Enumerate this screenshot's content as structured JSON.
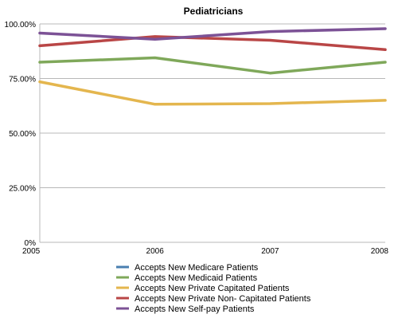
{
  "chart_data": {
    "type": "line",
    "title": "Pediatricians",
    "x": [
      "2005",
      "2006",
      "2007",
      "2008"
    ],
    "ylim": [
      0,
      100
    ],
    "yticks": [
      "0%",
      "25.00%",
      "50.00%",
      "75.00%",
      "100.00%"
    ],
    "grid": true,
    "legend_position": "bottom",
    "series": [
      {
        "name": "Accepts New Medicare Patients",
        "color": "#4a7fb0",
        "values": [
          null,
          null,
          null,
          null
        ]
      },
      {
        "name": "Accepts New Medicaid Patients",
        "color": "#7fa85a",
        "values": [
          82.5,
          84.5,
          77.5,
          82.5
        ]
      },
      {
        "name": "Accepts New Private Capitated Patients",
        "color": "#e4b64e",
        "values": [
          73.5,
          63.2,
          63.5,
          65.0
        ]
      },
      {
        "name": "Accepts New Private Non- Capitated Patients",
        "color": "#b94646",
        "values": [
          90.0,
          94.2,
          92.5,
          88.2
        ]
      },
      {
        "name": "Accepts New Self-pay Patients",
        "color": "#7c5296",
        "values": [
          95.8,
          93.0,
          96.5,
          97.8
        ]
      }
    ]
  }
}
